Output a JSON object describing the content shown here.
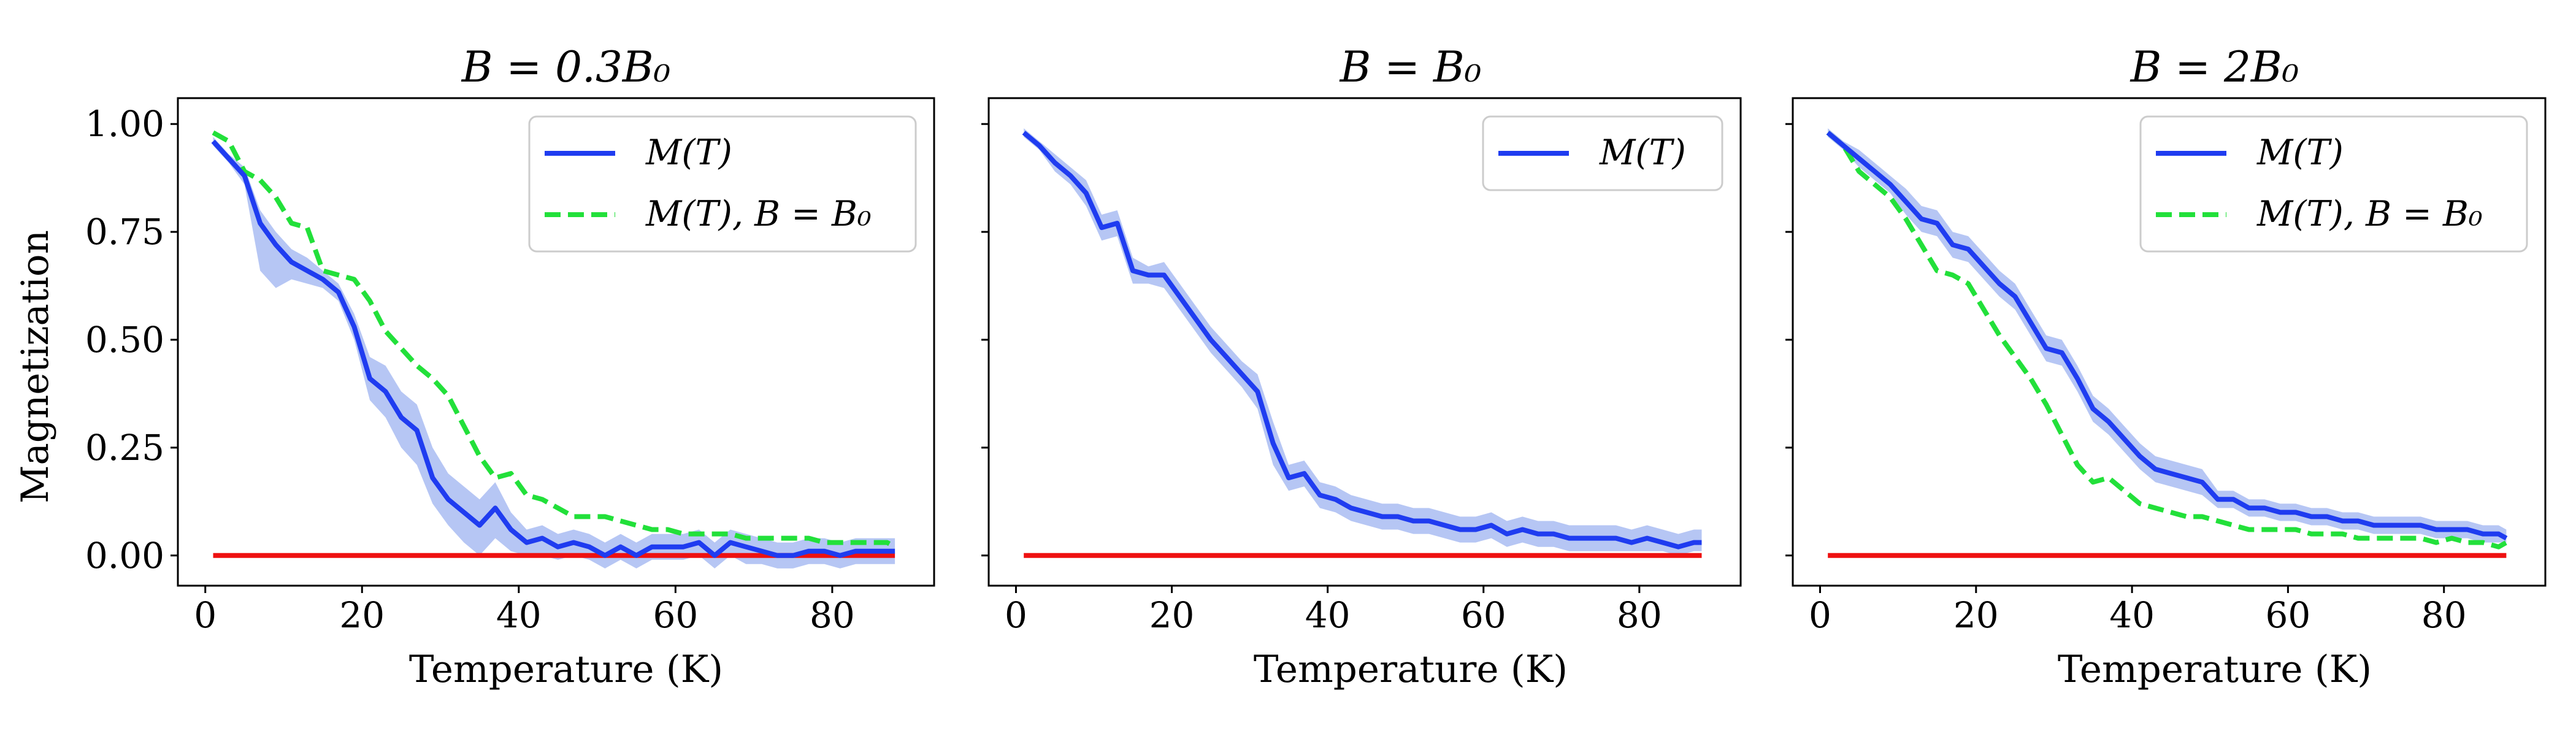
{
  "figure": {
    "ylabel": "Magnetization",
    "xlabel": "Temperature (K)"
  },
  "chart_data": [
    {
      "type": "line",
      "title": "B = 0.3B₀",
      "xlabel": "Temperature (K)",
      "ylabel": "Magnetization",
      "xlim": [
        -3.5,
        93
      ],
      "ylim": [
        -0.07,
        1.06
      ],
      "xticks": [
        "0",
        "20",
        "40",
        "60",
        "80"
      ],
      "yticks": [
        "0.00",
        "0.25",
        "0.50",
        "0.75",
        "1.00"
      ],
      "legend_position": "upper right",
      "series": [
        {
          "name": "M(T)",
          "style": "solid",
          "color": "#1f3cf0",
          "band_color": "#a9bcf2",
          "x": [
            1,
            3,
            5,
            7,
            9,
            11,
            13,
            15,
            17,
            19,
            21,
            23,
            25,
            27,
            29,
            31,
            33,
            35,
            37,
            39,
            41,
            43,
            45,
            47,
            49,
            51,
            53,
            55,
            57,
            59,
            61,
            63,
            65,
            67,
            69,
            71,
            73,
            75,
            77,
            79,
            81,
            83,
            85,
            87,
            88
          ],
          "y": [
            0.96,
            0.92,
            0.88,
            0.77,
            0.72,
            0.68,
            0.66,
            0.64,
            0.61,
            0.53,
            0.41,
            0.38,
            0.32,
            0.29,
            0.18,
            0.13,
            0.1,
            0.07,
            0.11,
            0.06,
            0.03,
            0.04,
            0.02,
            0.03,
            0.02,
            0.0,
            0.02,
            0.0,
            0.02,
            0.02,
            0.02,
            0.03,
            0.0,
            0.03,
            0.02,
            0.01,
            0.0,
            0.0,
            0.01,
            0.01,
            0.0,
            0.01,
            0.01,
            0.01,
            0.01
          ],
          "lower": [
            0.95,
            0.91,
            0.86,
            0.66,
            0.62,
            0.64,
            0.63,
            0.62,
            0.59,
            0.5,
            0.36,
            0.32,
            0.25,
            0.21,
            0.12,
            0.07,
            0.03,
            0.0,
            0.04,
            0.01,
            0.0,
            0.0,
            -0.01,
            0.0,
            -0.01,
            -0.03,
            -0.01,
            -0.03,
            -0.01,
            -0.01,
            -0.01,
            0.0,
            -0.03,
            0.0,
            -0.02,
            -0.02,
            -0.03,
            -0.03,
            -0.02,
            -0.02,
            -0.03,
            -0.02,
            -0.02,
            -0.02,
            -0.02
          ],
          "upper": [
            0.97,
            0.93,
            0.9,
            0.8,
            0.75,
            0.71,
            0.69,
            0.66,
            0.63,
            0.56,
            0.46,
            0.44,
            0.38,
            0.35,
            0.25,
            0.19,
            0.16,
            0.13,
            0.17,
            0.1,
            0.06,
            0.07,
            0.05,
            0.06,
            0.05,
            0.03,
            0.05,
            0.03,
            0.05,
            0.05,
            0.05,
            0.06,
            0.03,
            0.06,
            0.05,
            0.04,
            0.03,
            0.03,
            0.04,
            0.04,
            0.03,
            0.04,
            0.04,
            0.04,
            0.04
          ]
        },
        {
          "name": "M(T), B = B₀",
          "style": "dashed",
          "color": "#22e03a",
          "x": [
            1,
            3,
            5,
            7,
            9,
            11,
            13,
            15,
            17,
            19,
            21,
            23,
            25,
            27,
            29,
            31,
            33,
            35,
            37,
            39,
            41,
            43,
            45,
            47,
            49,
            51,
            53,
            55,
            57,
            59,
            61,
            63,
            65,
            67,
            69,
            71,
            73,
            75,
            77,
            79,
            81,
            83,
            85,
            87,
            88
          ],
          "y": [
            0.98,
            0.96,
            0.89,
            0.87,
            0.83,
            0.77,
            0.76,
            0.66,
            0.65,
            0.64,
            0.59,
            0.52,
            0.48,
            0.44,
            0.41,
            0.37,
            0.3,
            0.23,
            0.18,
            0.19,
            0.14,
            0.13,
            0.11,
            0.09,
            0.09,
            0.09,
            0.08,
            0.07,
            0.06,
            0.06,
            0.05,
            0.05,
            0.05,
            0.05,
            0.04,
            0.04,
            0.04,
            0.04,
            0.04,
            0.03,
            0.03,
            0.03,
            0.03,
            0.03,
            0.02
          ]
        },
        {
          "name": "",
          "style": "solid",
          "color": "#ee1111",
          "x": [
            1,
            88
          ],
          "y": [
            0,
            0
          ]
        }
      ],
      "legend": [
        {
          "label": "M(T)",
          "style": "solid",
          "color": "#1f3cf0"
        },
        {
          "label": "M(T), B = B₀",
          "style": "dashed",
          "color": "#22e03a"
        }
      ]
    },
    {
      "type": "line",
      "title": "B = B₀",
      "xlabel": "Temperature (K)",
      "ylabel": "",
      "xlim": [
        -3.5,
        93
      ],
      "ylim": [
        -0.07,
        1.06
      ],
      "xticks": [
        "0",
        "20",
        "40",
        "60",
        "80"
      ],
      "yticks": [],
      "legend_position": "upper right",
      "series": [
        {
          "name": "M(T)",
          "style": "solid",
          "color": "#1f3cf0",
          "band_color": "#a9bcf2",
          "x": [
            1,
            3,
            5,
            7,
            9,
            11,
            13,
            15,
            17,
            19,
            21,
            23,
            25,
            27,
            29,
            31,
            33,
            35,
            37,
            39,
            41,
            43,
            45,
            47,
            49,
            51,
            53,
            55,
            57,
            59,
            61,
            63,
            65,
            67,
            69,
            71,
            73,
            75,
            77,
            79,
            81,
            83,
            85,
            87,
            88
          ],
          "y": [
            0.98,
            0.95,
            0.91,
            0.88,
            0.84,
            0.76,
            0.77,
            0.66,
            0.65,
            0.65,
            0.6,
            0.55,
            0.5,
            0.46,
            0.42,
            0.38,
            0.26,
            0.18,
            0.19,
            0.14,
            0.13,
            0.11,
            0.1,
            0.09,
            0.09,
            0.08,
            0.08,
            0.07,
            0.06,
            0.06,
            0.07,
            0.05,
            0.06,
            0.05,
            0.05,
            0.04,
            0.04,
            0.04,
            0.04,
            0.03,
            0.04,
            0.03,
            0.02,
            0.03,
            0.03
          ],
          "lower": [
            0.97,
            0.94,
            0.89,
            0.86,
            0.81,
            0.73,
            0.74,
            0.63,
            0.63,
            0.62,
            0.57,
            0.52,
            0.47,
            0.43,
            0.39,
            0.34,
            0.21,
            0.15,
            0.16,
            0.11,
            0.1,
            0.08,
            0.07,
            0.06,
            0.06,
            0.05,
            0.05,
            0.04,
            0.03,
            0.03,
            0.04,
            0.02,
            0.03,
            0.02,
            0.02,
            0.01,
            0.01,
            0.01,
            0.01,
            0.01,
            0.01,
            0.01,
            0.0,
            0.01,
            0.01
          ],
          "upper": [
            0.99,
            0.96,
            0.93,
            0.9,
            0.87,
            0.79,
            0.8,
            0.69,
            0.67,
            0.68,
            0.63,
            0.58,
            0.53,
            0.49,
            0.45,
            0.42,
            0.31,
            0.21,
            0.22,
            0.17,
            0.16,
            0.14,
            0.13,
            0.12,
            0.12,
            0.11,
            0.11,
            0.1,
            0.09,
            0.09,
            0.1,
            0.08,
            0.09,
            0.08,
            0.08,
            0.07,
            0.07,
            0.07,
            0.07,
            0.06,
            0.07,
            0.06,
            0.05,
            0.06,
            0.06
          ]
        },
        {
          "name": "",
          "style": "solid",
          "color": "#ee1111",
          "x": [
            1,
            88
          ],
          "y": [
            0,
            0
          ]
        }
      ],
      "legend": [
        {
          "label": "M(T)",
          "style": "solid",
          "color": "#1f3cf0"
        }
      ]
    },
    {
      "type": "line",
      "title": "B = 2B₀",
      "xlabel": "Temperature (K)",
      "ylabel": "",
      "xlim": [
        -3.5,
        93
      ],
      "ylim": [
        -0.07,
        1.06
      ],
      "xticks": [
        "0",
        "20",
        "40",
        "60",
        "80"
      ],
      "yticks": [],
      "legend_position": "upper right",
      "series": [
        {
          "name": "M(T)",
          "style": "solid",
          "color": "#1f3cf0",
          "band_color": "#a9bcf2",
          "x": [
            1,
            3,
            5,
            7,
            9,
            11,
            13,
            15,
            17,
            19,
            21,
            23,
            25,
            27,
            29,
            31,
            33,
            35,
            37,
            39,
            41,
            43,
            45,
            47,
            49,
            51,
            53,
            55,
            57,
            59,
            61,
            63,
            65,
            67,
            69,
            71,
            73,
            75,
            77,
            79,
            81,
            83,
            85,
            87,
            88
          ],
          "y": [
            0.98,
            0.95,
            0.92,
            0.89,
            0.86,
            0.82,
            0.78,
            0.77,
            0.72,
            0.71,
            0.67,
            0.63,
            0.6,
            0.54,
            0.48,
            0.47,
            0.41,
            0.34,
            0.31,
            0.27,
            0.23,
            0.2,
            0.19,
            0.18,
            0.17,
            0.13,
            0.13,
            0.11,
            0.11,
            0.1,
            0.1,
            0.09,
            0.09,
            0.08,
            0.08,
            0.07,
            0.07,
            0.07,
            0.07,
            0.06,
            0.06,
            0.06,
            0.05,
            0.05,
            0.04
          ],
          "lower": [
            0.97,
            0.94,
            0.9,
            0.87,
            0.84,
            0.79,
            0.75,
            0.74,
            0.69,
            0.68,
            0.64,
            0.6,
            0.57,
            0.51,
            0.45,
            0.44,
            0.38,
            0.31,
            0.28,
            0.24,
            0.2,
            0.17,
            0.16,
            0.15,
            0.14,
            0.11,
            0.11,
            0.09,
            0.09,
            0.08,
            0.08,
            0.07,
            0.07,
            0.06,
            0.06,
            0.05,
            0.05,
            0.05,
            0.05,
            0.04,
            0.04,
            0.04,
            0.03,
            0.03,
            0.03
          ],
          "upper": [
            0.99,
            0.96,
            0.94,
            0.91,
            0.88,
            0.85,
            0.81,
            0.8,
            0.75,
            0.74,
            0.7,
            0.66,
            0.63,
            0.57,
            0.51,
            0.5,
            0.44,
            0.37,
            0.34,
            0.3,
            0.26,
            0.23,
            0.22,
            0.21,
            0.2,
            0.15,
            0.15,
            0.13,
            0.13,
            0.12,
            0.12,
            0.11,
            0.11,
            0.1,
            0.1,
            0.09,
            0.09,
            0.09,
            0.09,
            0.08,
            0.08,
            0.08,
            0.07,
            0.07,
            0.06
          ]
        },
        {
          "name": "M(T), B = B₀",
          "style": "dashed",
          "color": "#22e03a",
          "x": [
            1,
            3,
            5,
            7,
            9,
            11,
            13,
            15,
            17,
            19,
            21,
            23,
            25,
            27,
            29,
            31,
            33,
            35,
            37,
            39,
            41,
            43,
            45,
            47,
            49,
            51,
            53,
            55,
            57,
            59,
            61,
            63,
            65,
            67,
            69,
            71,
            73,
            75,
            77,
            79,
            81,
            83,
            85,
            87,
            88
          ],
          "y": [
            0.98,
            0.95,
            0.89,
            0.86,
            0.83,
            0.78,
            0.72,
            0.66,
            0.65,
            0.63,
            0.57,
            0.51,
            0.46,
            0.41,
            0.35,
            0.28,
            0.21,
            0.17,
            0.18,
            0.15,
            0.12,
            0.11,
            0.1,
            0.09,
            0.09,
            0.08,
            0.07,
            0.06,
            0.06,
            0.06,
            0.06,
            0.05,
            0.05,
            0.05,
            0.04,
            0.04,
            0.04,
            0.04,
            0.04,
            0.03,
            0.04,
            0.03,
            0.03,
            0.02,
            0.03
          ]
        },
        {
          "name": "",
          "style": "solid",
          "color": "#ee1111",
          "x": [
            1,
            88
          ],
          "y": [
            0,
            0
          ]
        }
      ],
      "legend": [
        {
          "label": "M(T)",
          "style": "solid",
          "color": "#1f3cf0"
        },
        {
          "label": "M(T), B = B₀",
          "style": "dashed",
          "color": "#22e03a"
        }
      ]
    }
  ]
}
